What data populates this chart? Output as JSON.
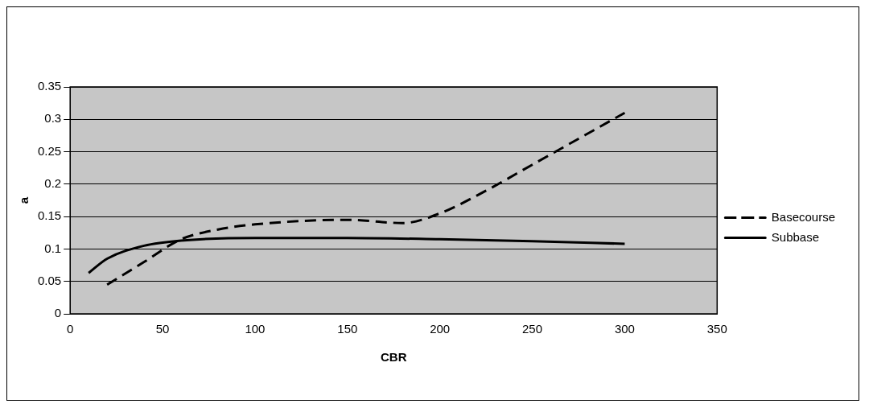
{
  "chart_data": {
    "type": "line",
    "xlabel": "CBR",
    "ylabel": "a",
    "xlim": [
      0,
      350
    ],
    "xticks": [
      0,
      50,
      100,
      150,
      200,
      250,
      300,
      350
    ],
    "ylim": [
      0,
      0.35
    ],
    "yticks": [
      0,
      0.05,
      0.1,
      0.15,
      0.2,
      0.25,
      0.3,
      0.35
    ],
    "grid": "y",
    "legend": "right",
    "marker": "none",
    "series": [
      {
        "name": "Basecourse",
        "color": "#000000",
        "line_style": "dashed",
        "x": [
          20,
          40,
          60,
          80,
          100,
          150,
          180,
          200,
          225,
          250,
          275,
          300
        ],
        "values": [
          0.045,
          0.08,
          0.115,
          0.13,
          0.138,
          0.145,
          0.14,
          0.155,
          0.19,
          0.23,
          0.27,
          0.31
        ]
      },
      {
        "name": "Subbase",
        "color": "#000000",
        "line_style": "solid",
        "x": [
          10,
          20,
          40,
          60,
          100,
          150,
          200,
          250,
          300
        ],
        "values": [
          0.063,
          0.085,
          0.105,
          0.113,
          0.117,
          0.117,
          0.115,
          0.112,
          0.108
        ]
      }
    ]
  }
}
